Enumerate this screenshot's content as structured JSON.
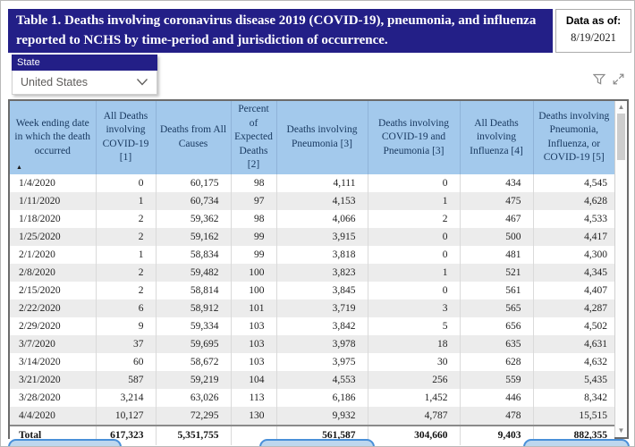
{
  "header": {
    "title": "Table 1. Deaths involving coronavirus disease 2019 (COVID-19), pneumonia, and influenza reported to NCHS by time-period and jurisdiction of occurrence.",
    "data_as_of_label": "Data as of:",
    "data_as_of_date": "8/19/2021"
  },
  "slicer": {
    "label": "State",
    "selected_value": "United States"
  },
  "icons": {
    "sort_ascending": "▲",
    "scroll_up": "▲",
    "scroll_down": "▼",
    "filter": "filter-funnel-icon",
    "focus": "focus-mode-icon",
    "chevron": "chevron-down-icon"
  },
  "colors": {
    "title_bar_bg": "#231f87",
    "title_text": "#ffffff",
    "header_bg": "#a3c9ec",
    "header_text": "#17375e",
    "alt_row_bg": "#ececec",
    "nav_button_fill": "#bdd7ee",
    "nav_button_border": "#4a90d9"
  },
  "table": {
    "sort": {
      "column_index": 0,
      "direction": "ascending"
    },
    "columns": [
      "Week ending date in which the death occurred",
      "All Deaths involving COVID-19 [1]",
      "Deaths from All Causes",
      "Percent of Expected Deaths [2]",
      "Deaths involving Pneumonia [3]",
      "Deaths involving COVID-19 and Pneumonia [3]",
      "All Deaths involving Influenza [4]",
      "Deaths involving Pneumonia, Influenza, or COVID-19 [5]"
    ],
    "rows": [
      [
        "1/4/2020",
        "0",
        "60,175",
        "98",
        "4,111",
        "0",
        "434",
        "4,545"
      ],
      [
        "1/11/2020",
        "1",
        "60,734",
        "97",
        "4,153",
        "1",
        "475",
        "4,628"
      ],
      [
        "1/18/2020",
        "2",
        "59,362",
        "98",
        "4,066",
        "2",
        "467",
        "4,533"
      ],
      [
        "1/25/2020",
        "2",
        "59,162",
        "99",
        "3,915",
        "0",
        "500",
        "4,417"
      ],
      [
        "2/1/2020",
        "1",
        "58,834",
        "99",
        "3,818",
        "0",
        "481",
        "4,300"
      ],
      [
        "2/8/2020",
        "2",
        "59,482",
        "100",
        "3,823",
        "1",
        "521",
        "4,345"
      ],
      [
        "2/15/2020",
        "2",
        "58,814",
        "100",
        "3,845",
        "0",
        "561",
        "4,407"
      ],
      [
        "2/22/2020",
        "6",
        "58,912",
        "101",
        "3,719",
        "3",
        "565",
        "4,287"
      ],
      [
        "2/29/2020",
        "9",
        "59,334",
        "103",
        "3,842",
        "5",
        "656",
        "4,502"
      ],
      [
        "3/7/2020",
        "37",
        "59,695",
        "103",
        "3,978",
        "18",
        "635",
        "4,631"
      ],
      [
        "3/14/2020",
        "60",
        "58,672",
        "103",
        "3,975",
        "30",
        "628",
        "4,632"
      ],
      [
        "3/21/2020",
        "587",
        "59,219",
        "104",
        "4,553",
        "256",
        "559",
        "5,435"
      ],
      [
        "3/28/2020",
        "3,214",
        "63,026",
        "113",
        "6,186",
        "1,452",
        "446",
        "8,342"
      ],
      [
        "4/4/2020",
        "10,127",
        "72,295",
        "130",
        "9,932",
        "4,787",
        "478",
        "15,515"
      ]
    ],
    "total_row": [
      "Total",
      "617,323",
      "5,351,755",
      "",
      "561,587",
      "304,660",
      "9,403",
      "882,355"
    ]
  }
}
